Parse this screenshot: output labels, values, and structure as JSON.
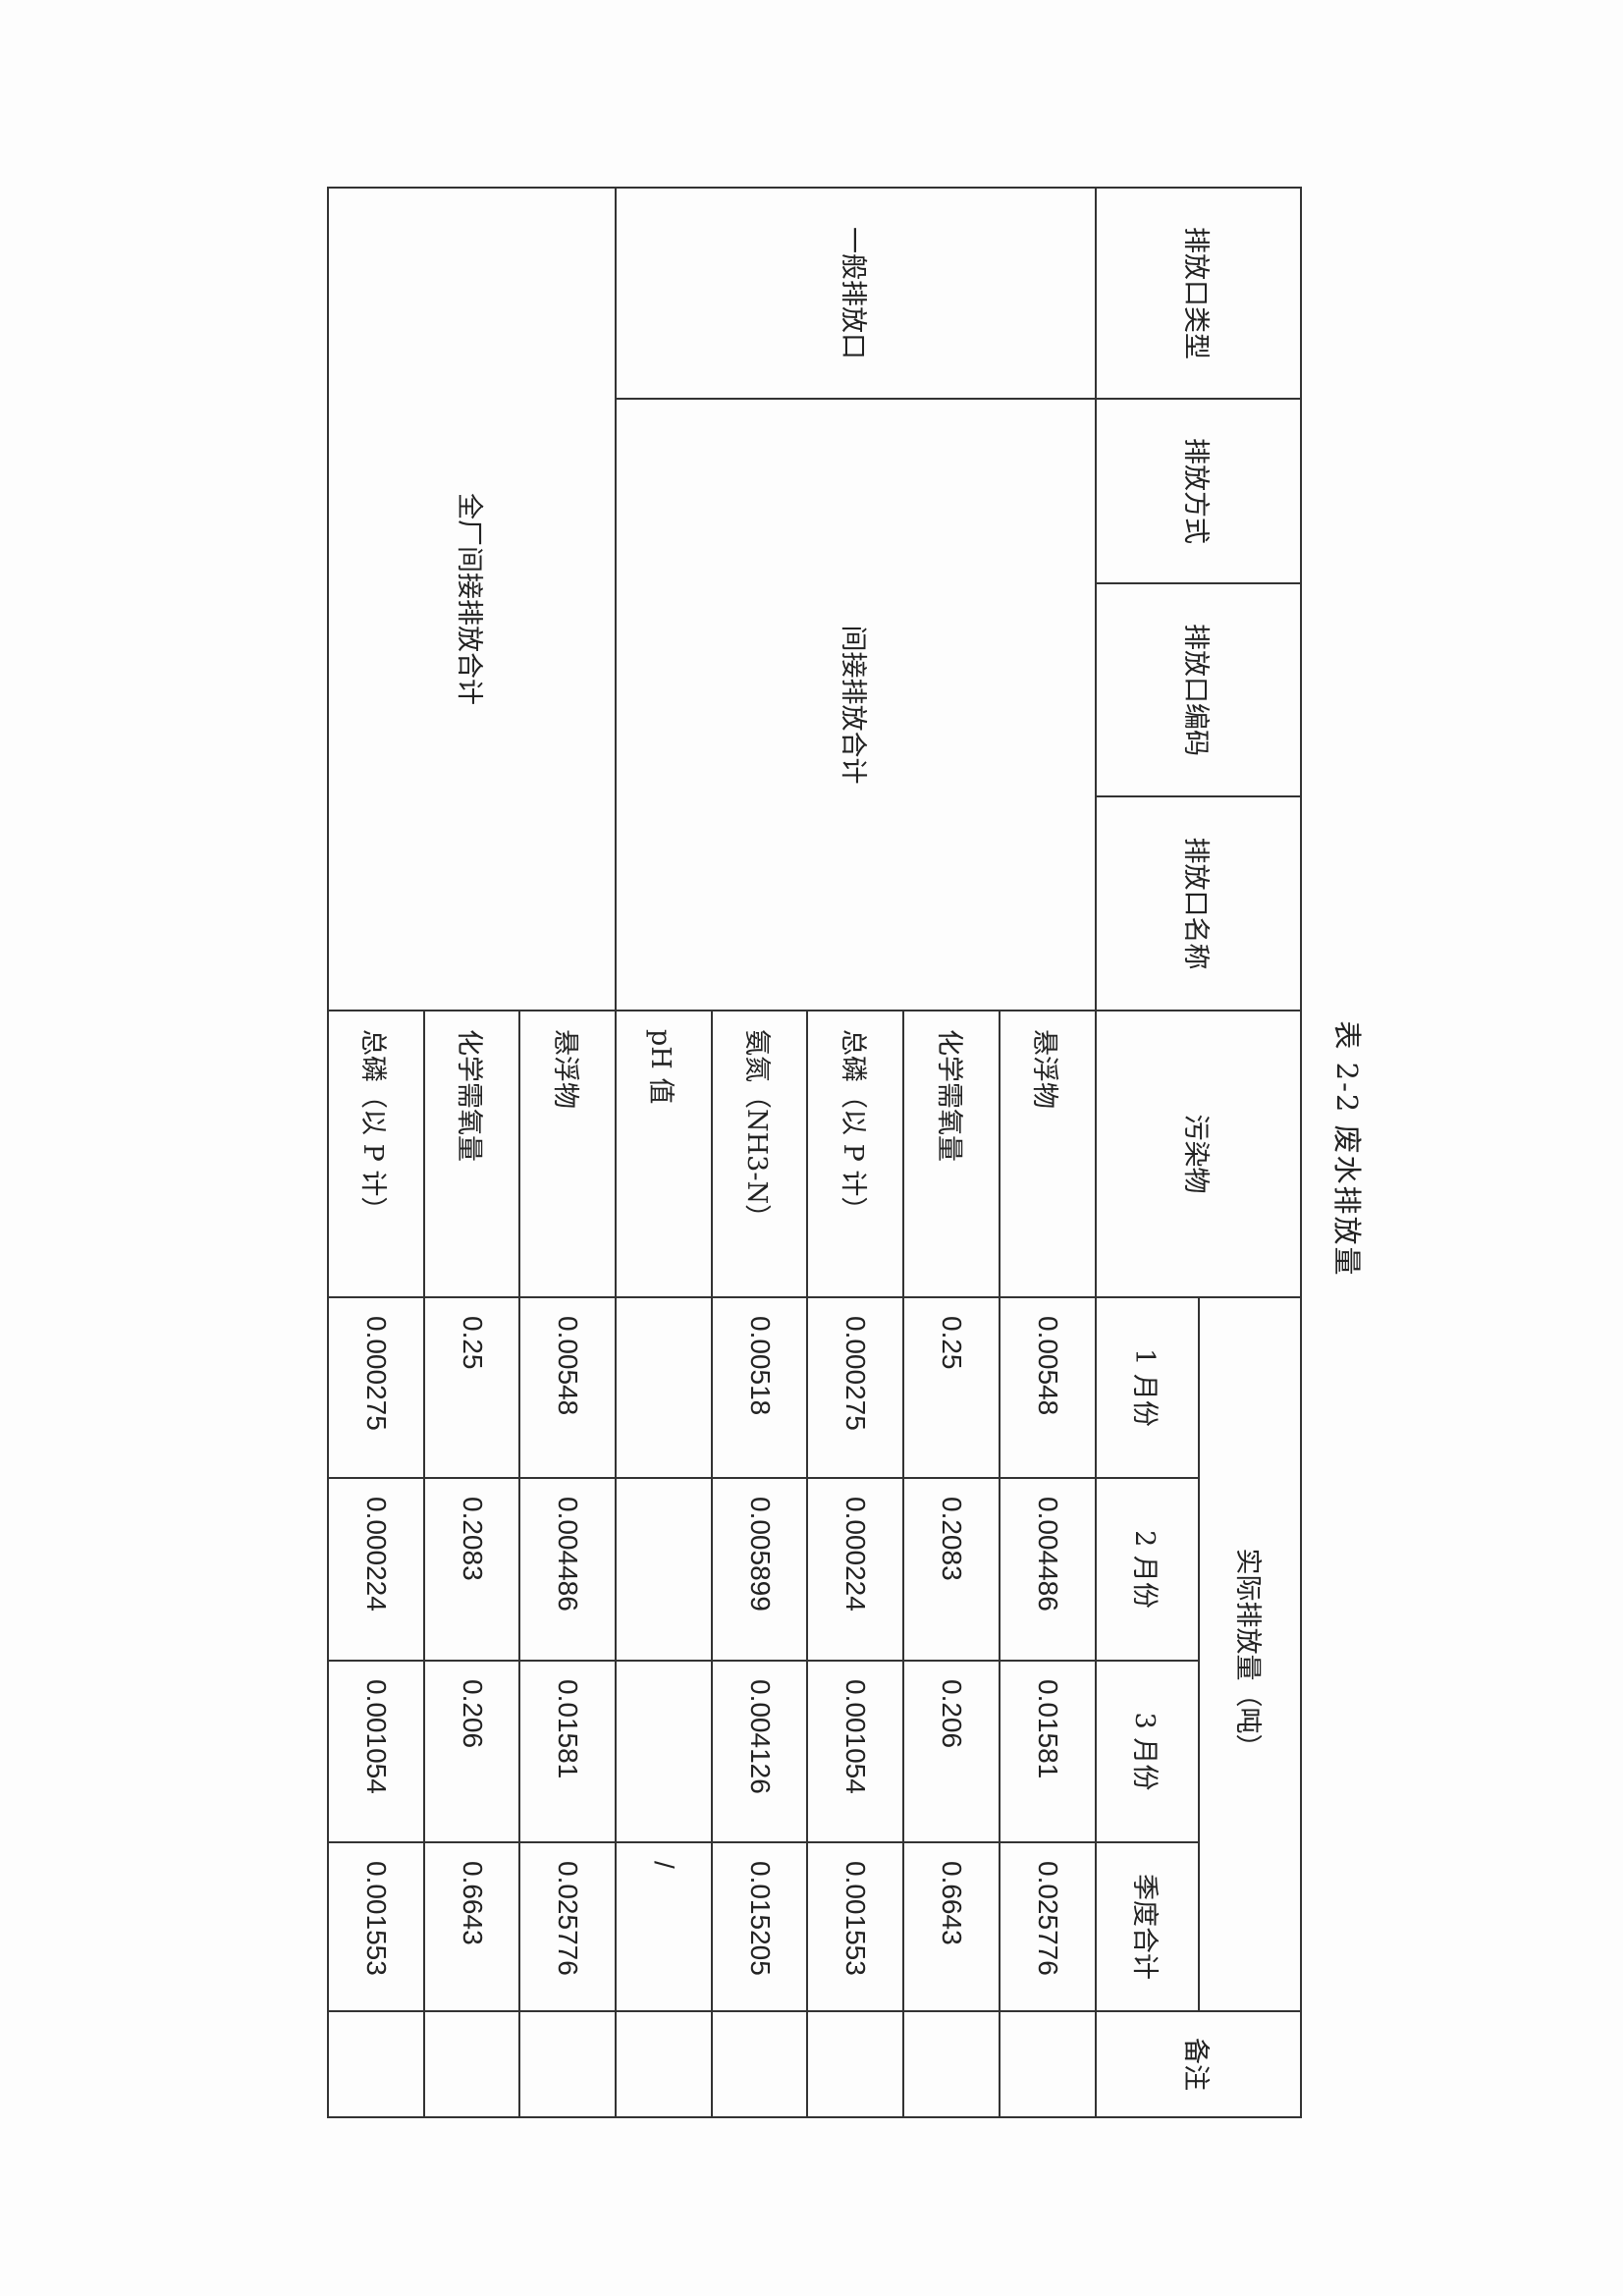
{
  "title": "表 2-2 废水排放量",
  "table": {
    "headers": {
      "outlet_type": "排放口类型",
      "discharge_mode": "排放方式",
      "outlet_code": "排放口编码",
      "outlet_name": "排放口名称",
      "pollutant": "污染物",
      "actual_emission": "实际排放量（吨）",
      "months": [
        "1 月份",
        "2 月份",
        "3 月份",
        "季度合计"
      ],
      "remarks": "备注"
    },
    "sections": [
      {
        "outlet_type": "一般排放口",
        "label": "间接排放合计",
        "rows": [
          {
            "pollutant": "悬浮物",
            "values": [
              "0.00548",
              "0.004486",
              "0.01581",
              "0.025776"
            ],
            "remark": ""
          },
          {
            "pollutant": "化学需氧量",
            "values": [
              "0.25",
              "0.2083",
              "0.206",
              "0.6643"
            ],
            "remark": ""
          },
          {
            "pollutant": "总磷（以 P 计）",
            "values": [
              "0.000275",
              "0.000224",
              "0.001054",
              "0.001553"
            ],
            "remark": ""
          },
          {
            "pollutant": "氨氮（NH3-N）",
            "values": [
              "0.00518",
              "0.005899",
              "0.004126",
              "0.015205"
            ],
            "remark": ""
          },
          {
            "pollutant": "pH 值",
            "values": [
              "",
              "",
              "",
              "/"
            ],
            "remark": ""
          }
        ]
      },
      {
        "label": "全厂间接排放合计",
        "rows": [
          {
            "pollutant": "悬浮物",
            "values": [
              "0.00548",
              "0.004486",
              "0.01581",
              "0.025776"
            ],
            "remark": ""
          },
          {
            "pollutant": "化学需氧量",
            "values": [
              "0.25",
              "0.2083",
              "0.206",
              "0.6643"
            ],
            "remark": ""
          },
          {
            "pollutant": "总磷（以 P 计）",
            "values": [
              "0.000275",
              "0.000224",
              "0.001054",
              "0.001553"
            ],
            "remark": ""
          }
        ]
      }
    ]
  }
}
